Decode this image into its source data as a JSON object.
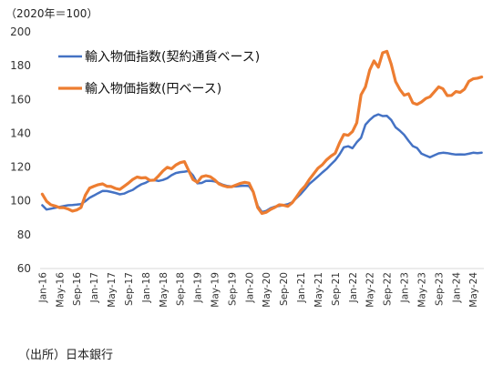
{
  "unit_label": "（2020年＝100）",
  "source_label": "（出所）日本銀行",
  "chart_data": {
    "type": "line",
    "title": "",
    "xlabel": "",
    "ylabel": "",
    "ylim": [
      60,
      200
    ],
    "yticks": [
      60,
      80,
      100,
      120,
      140,
      160,
      180,
      200
    ],
    "grid": false,
    "legend_position": "top-left",
    "x_tick_labels": [
      "Jan-16",
      "May-16",
      "Sep-16",
      "Jan-17",
      "May-17",
      "Sep-17",
      "Jan-18",
      "May-18",
      "Sep-18",
      "Jan-19",
      "May-19",
      "Sep-19",
      "Jan-20",
      "May-20",
      "Sep-20",
      "Jan-21",
      "May-21",
      "Sep-21",
      "Jan-22",
      "May-22",
      "Sep-22",
      "Jan-23",
      "May-23",
      "Sep-23",
      "Jan-24",
      "May-24"
    ],
    "start_month": "2016-01",
    "series": [
      {
        "name": "輸入物価指数(契約通貨ベース)",
        "color": "#4472C4",
        "values": [
          97.4,
          94.9,
          95.4,
          95.9,
          96.4,
          97.0,
          97.4,
          97.6,
          97.8,
          98.1,
          99.8,
          101.9,
          103.2,
          104.6,
          105.9,
          105.8,
          105.3,
          104.7,
          103.9,
          104.3,
          105.5,
          106.5,
          108.3,
          109.8,
          110.7,
          112.1,
          112.3,
          111.8,
          112.4,
          113.4,
          115.2,
          116.5,
          117.0,
          117.3,
          117.7,
          115.1,
          110.4,
          110.6,
          111.8,
          111.9,
          111.6,
          110.5,
          109.5,
          108.8,
          108.5,
          108.6,
          108.9,
          109.0,
          108.8,
          105.1,
          97.0,
          93.4,
          94.1,
          95.7,
          96.6,
          97.0,
          97.5,
          98.0,
          99.2,
          101.7,
          104.1,
          107.0,
          110.1,
          112.2,
          114.5,
          116.8,
          118.9,
          121.6,
          124.1,
          127.5,
          131.7,
          132.3,
          131.2,
          134.7,
          137.3,
          145.1,
          147.9,
          150.1,
          151.2,
          150.2,
          150.3,
          147.9,
          143.5,
          141.5,
          139.1,
          135.6,
          132.4,
          131.3,
          128.0,
          126.8,
          125.8,
          127.0,
          128.1,
          128.5,
          128.3,
          127.8,
          127.4,
          127.5,
          127.4,
          127.9,
          128.5,
          128.2,
          128.5
        ]
      },
      {
        "name": "輸入物価指数(円ベース)",
        "color": "#ED7D31",
        "values": [
          104.0,
          99.8,
          97.7,
          97.0,
          96.0,
          96.0,
          95.2,
          94.0,
          94.6,
          96.1,
          103.3,
          107.6,
          108.7,
          109.6,
          110.1,
          108.7,
          108.5,
          107.4,
          106.8,
          108.6,
          110.5,
          112.7,
          114.1,
          113.6,
          113.8,
          112.1,
          112.3,
          114.8,
          117.7,
          119.9,
          119.0,
          121.2,
          122.6,
          123.2,
          117.9,
          112.6,
          111.0,
          114.3,
          114.9,
          114.3,
          112.5,
          110.1,
          109.0,
          108.3,
          108.4,
          109.4,
          110.4,
          111.0,
          110.5,
          105.2,
          96.0,
          92.6,
          93.3,
          95.0,
          96.2,
          97.7,
          97.4,
          96.8,
          98.9,
          102.3,
          106.1,
          108.8,
          112.7,
          116.0,
          119.4,
          121.4,
          124.3,
          126.5,
          128.2,
          134.3,
          139.3,
          138.8,
          141.0,
          146.2,
          162.8,
          167.4,
          177.4,
          182.8,
          179.1,
          187.6,
          188.5,
          180.9,
          170.6,
          165.9,
          162.5,
          163.4,
          158.0,
          157.1,
          158.5,
          160.6,
          161.6,
          164.5,
          167.5,
          166.3,
          162.3,
          162.4,
          164.7,
          164.2,
          166.1,
          170.7,
          172.2,
          172.6,
          173.3
        ]
      }
    ]
  }
}
